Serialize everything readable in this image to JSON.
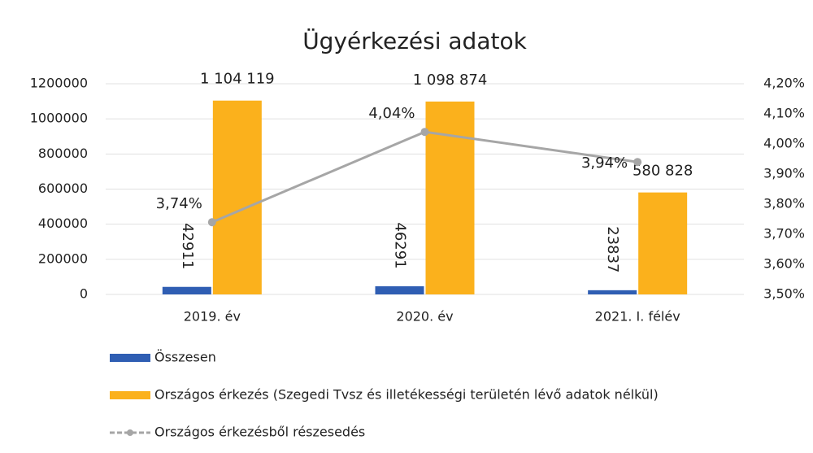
{
  "chart_data": {
    "type": "bar-line",
    "title": "Ügyérkezési adatok",
    "categories": [
      "2019. év",
      "2020. év",
      "2021. I. félév"
    ],
    "series": [
      {
        "name": "Összesen",
        "type": "bar",
        "color": "#2f5eb3",
        "values": [
          42911,
          46291,
          23837
        ]
      },
      {
        "name": "Országos érkezés (Szegedi Tvsz és illetékességi területén lévő adatok nélkül)",
        "type": "bar",
        "color": "#fbb11c",
        "values": [
          1104119,
          1098874,
          580828
        ],
        "value_labels": [
          "1 104 119",
          "1 098 874",
          "580 828"
        ]
      },
      {
        "name": "Országos érkezésből részesedés",
        "type": "line",
        "axis": "y2",
        "color": "#a6a6a6",
        "values": [
          3.74,
          4.04,
          3.94
        ],
        "value_labels": [
          "3,74%",
          "4,04%",
          "3,94%"
        ]
      }
    ],
    "ylim": [
      0,
      1200000
    ],
    "yticks": [
      0,
      200000,
      400000,
      600000,
      800000,
      1000000,
      1200000
    ],
    "y2lim": [
      3.5,
      4.2
    ],
    "y2ticks": [
      {
        "value": 3.5,
        "label": "3,50%"
      },
      {
        "value": 3.6,
        "label": "3,60%"
      },
      {
        "value": 3.7,
        "label": "3,70%"
      },
      {
        "value": 3.8,
        "label": "3,80%"
      },
      {
        "value": 3.9,
        "label": "3,90%"
      },
      {
        "value": 4.0,
        "label": "4,00%"
      },
      {
        "value": 4.1,
        "label": "4,10%"
      },
      {
        "value": 4.2,
        "label": "4,20%"
      }
    ],
    "grid": true
  }
}
